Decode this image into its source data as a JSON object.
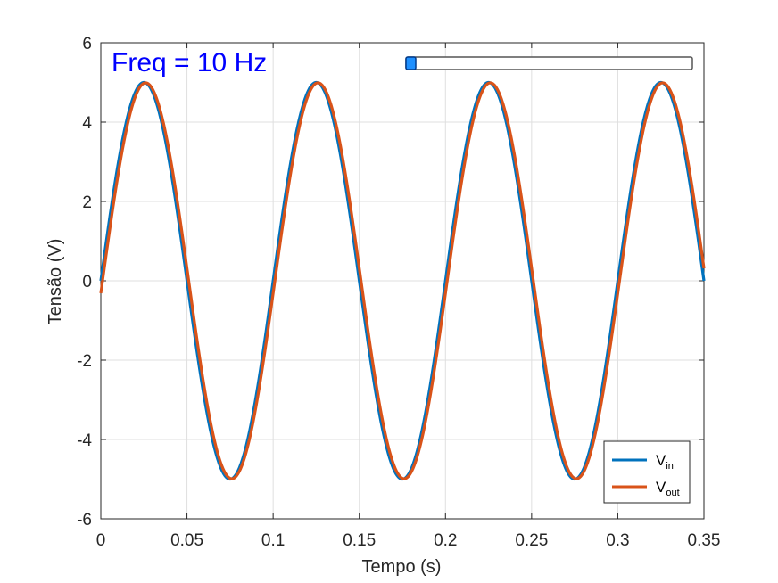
{
  "chart_data": {
    "type": "line",
    "xlabel": "Tempo (s)",
    "ylabel": "Tensão (V)",
    "xlim": [
      0,
      0.35
    ],
    "ylim": [
      -6,
      6
    ],
    "xticks": [
      "0",
      "0.05",
      "0.1",
      "0.15",
      "0.2",
      "0.25",
      "0.3",
      "0.35"
    ],
    "yticks": [
      "-6",
      "-4",
      "-2",
      "0",
      "2",
      "4",
      "6"
    ],
    "grid": true,
    "legend_position": "bottom-right",
    "annotation": {
      "text": "Freq = 10 Hz",
      "color": "#0000ff"
    },
    "series": [
      {
        "name": "V",
        "subscript": "in",
        "color": "#0072bd",
        "amplitude": 5,
        "frequency_hz": 10,
        "phase_deg": 0
      },
      {
        "name": "V",
        "subscript": "out",
        "color": "#d95319",
        "amplitude": 4.99,
        "frequency_hz": 10,
        "phase_deg": -3.6
      }
    ]
  },
  "slider": {
    "value": 0.0,
    "track_color": "#ffffff",
    "thumb_color": "#1e90ff"
  }
}
